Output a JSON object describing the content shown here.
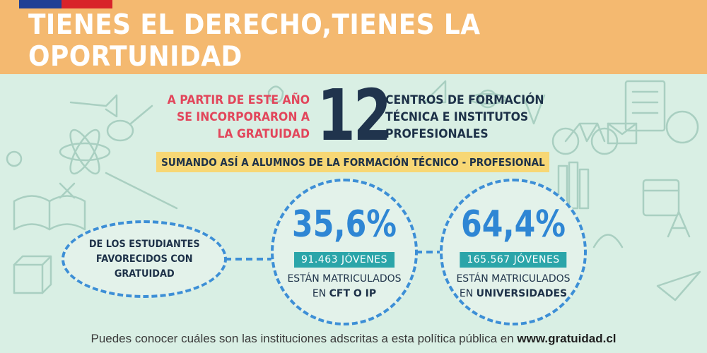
{
  "header": {
    "title": "TIENES EL DERECHO,TIENES LA OPORTUNIDAD"
  },
  "intro": {
    "left_lines": [
      "A PARTIR DE ESTE AÑO",
      "SE INCORPORARON A",
      "LA GRATUIDAD"
    ],
    "number": "12",
    "right_lines": [
      "CENTROS DE FORMACIÓN",
      "TÉCNICA E INSTITUTOS",
      "PROFESIONALES"
    ]
  },
  "subtitle": "SUMANDO ASÍ A ALUMNOS DE LA FORMACIÓN TÉCNICO - PROFESIONAL",
  "students_label": [
    "DE LOS ESTUDIANTES",
    "FAVORECIDOS CON",
    "GRATUIDAD"
  ],
  "stats": [
    {
      "percent": "35,6%",
      "count": "91.463 JÓVENES",
      "line1": "ESTÁN MATRICULADOS",
      "line2_prefix": "EN ",
      "line2_bold": "CFT O IP"
    },
    {
      "percent": "64,4%",
      "count": "165.567 JÓVENES",
      "line1": "ESTÁN MATRICULADOS",
      "line2_prefix": "EN ",
      "line2_bold": "UNIVERSIDADES"
    }
  ],
  "footer": {
    "text": "Puedes conocer cuáles son las instituciones adscritas a esta política pública en ",
    "link": "www.gratuidad.cl"
  },
  "colors": {
    "banner": "#f4b970",
    "background": "#d9efe4",
    "accent_blue": "#3d8fd6",
    "accent_red": "#e2465b",
    "navy": "#20344d",
    "pill_teal": "#2ba5a9",
    "highlight_yellow": "#f7d775"
  }
}
